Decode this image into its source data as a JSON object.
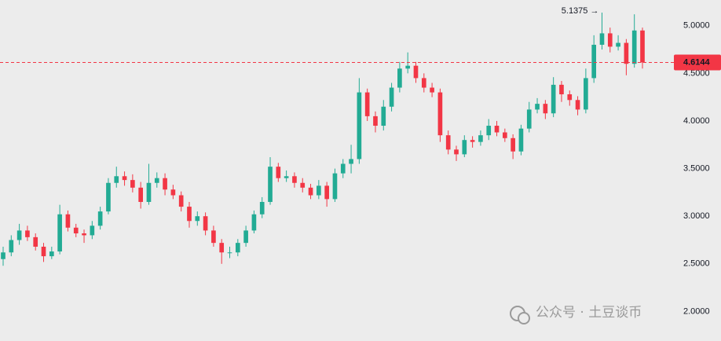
{
  "chart_data": {
    "type": "candlestick",
    "open": [
      2.55,
      2.62,
      2.75,
      2.85,
      2.78,
      2.68,
      2.58,
      2.63,
      3.02,
      2.88,
      2.82,
      2.8,
      2.9,
      3.05,
      3.35,
      3.42,
      3.38,
      3.3,
      3.15,
      3.35,
      3.4,
      3.28,
      3.22,
      3.1,
      2.95,
      3.0,
      2.85,
      2.72,
      2.62,
      2.62,
      2.72,
      2.85,
      3.02,
      3.15,
      3.52,
      3.4,
      3.42,
      3.35,
      3.3,
      3.22,
      3.32,
      3.18,
      3.45,
      3.55,
      3.6,
      4.3,
      4.05,
      3.95,
      4.15,
      4.35,
      4.55,
      4.58,
      4.45,
      4.35,
      4.3,
      3.85,
      3.7,
      3.65,
      3.8,
      3.78,
      3.85,
      3.95,
      3.88,
      3.82,
      3.68,
      3.92,
      4.12,
      4.18,
      4.08,
      4.38,
      4.28,
      4.22,
      4.12,
      4.45,
      4.8,
      4.92,
      4.78,
      4.82,
      4.6,
      4.95
    ],
    "high": [
      2.68,
      2.8,
      2.92,
      2.9,
      2.82,
      2.72,
      2.68,
      3.12,
      3.06,
      2.92,
      2.86,
      2.95,
      3.1,
      3.4,
      3.52,
      3.47,
      3.44,
      3.36,
      3.55,
      3.46,
      3.45,
      3.33,
      3.26,
      3.15,
      3.05,
      3.04,
      2.9,
      2.76,
      2.68,
      2.76,
      2.9,
      3.06,
      3.2,
      3.62,
      3.56,
      3.48,
      3.46,
      3.4,
      3.34,
      3.38,
      3.36,
      3.5,
      3.6,
      3.75,
      4.45,
      4.34,
      4.1,
      4.22,
      4.4,
      4.62,
      4.72,
      4.62,
      4.5,
      4.4,
      4.34,
      3.9,
      3.74,
      3.85,
      3.84,
      3.9,
      4.02,
      4.0,
      3.92,
      3.86,
      3.96,
      4.2,
      4.24,
      4.22,
      4.46,
      4.42,
      4.32,
      4.26,
      4.55,
      4.9,
      5.1375,
      4.98,
      4.9,
      4.86,
      5.12,
      4.98
    ],
    "low": [
      2.48,
      2.58,
      2.7,
      2.74,
      2.64,
      2.52,
      2.55,
      2.6,
      2.84,
      2.78,
      2.72,
      2.76,
      2.86,
      3.02,
      3.3,
      3.32,
      3.25,
      3.08,
      3.12,
      3.3,
      3.22,
      3.18,
      3.05,
      2.88,
      2.9,
      2.8,
      2.68,
      2.5,
      2.56,
      2.58,
      2.68,
      2.82,
      2.98,
      3.12,
      3.36,
      3.36,
      3.3,
      3.25,
      3.18,
      3.18,
      3.1,
      3.15,
      3.4,
      3.45,
      3.55,
      4.0,
      3.88,
      3.9,
      4.1,
      4.3,
      4.5,
      4.4,
      4.3,
      4.25,
      3.78,
      3.65,
      3.58,
      3.62,
      3.72,
      3.74,
      3.8,
      3.84,
      3.78,
      3.6,
      3.64,
      3.88,
      4.08,
      4.02,
      4.04,
      4.2,
      4.16,
      4.06,
      4.08,
      4.4,
      4.75,
      4.72,
      4.74,
      4.48,
      4.56,
      4.55
    ],
    "close": [
      2.62,
      2.75,
      2.85,
      2.78,
      2.68,
      2.58,
      2.63,
      3.02,
      2.88,
      2.82,
      2.8,
      2.9,
      3.05,
      3.35,
      3.42,
      3.38,
      3.3,
      3.15,
      3.35,
      3.4,
      3.28,
      3.22,
      3.1,
      2.95,
      3.0,
      2.85,
      2.72,
      2.62,
      2.62,
      2.72,
      2.85,
      3.02,
      3.15,
      3.52,
      3.4,
      3.42,
      3.35,
      3.3,
      3.22,
      3.32,
      3.18,
      3.45,
      3.55,
      3.6,
      4.3,
      4.05,
      3.95,
      4.15,
      4.35,
      4.55,
      4.58,
      4.45,
      4.35,
      4.3,
      3.85,
      3.7,
      3.65,
      3.8,
      3.78,
      3.85,
      3.95,
      3.88,
      3.82,
      3.68,
      3.92,
      4.12,
      4.18,
      4.08,
      4.38,
      4.28,
      4.22,
      4.12,
      4.45,
      4.8,
      4.92,
      4.78,
      4.82,
      4.6,
      4.95,
      4.6144
    ],
    "up_color": "#22ab94",
    "down_color": "#f23645",
    "ylim": [
      1.69,
      5.27
    ],
    "yticks": [
      {
        "value": 2.0,
        "label": "2.0000"
      },
      {
        "value": 2.5,
        "label": "2.5000"
      },
      {
        "value": 3.0,
        "label": "3.0000"
      },
      {
        "value": 3.5,
        "label": "3.5000"
      },
      {
        "value": 4.0,
        "label": "4.0000"
      },
      {
        "value": 4.5,
        "label": "4.5000"
      },
      {
        "value": 5.0,
        "label": "5.0000"
      }
    ],
    "last_price": 4.6144,
    "high_label": "5.1375 →",
    "watermark": "公众号 · 土豆谈币"
  }
}
